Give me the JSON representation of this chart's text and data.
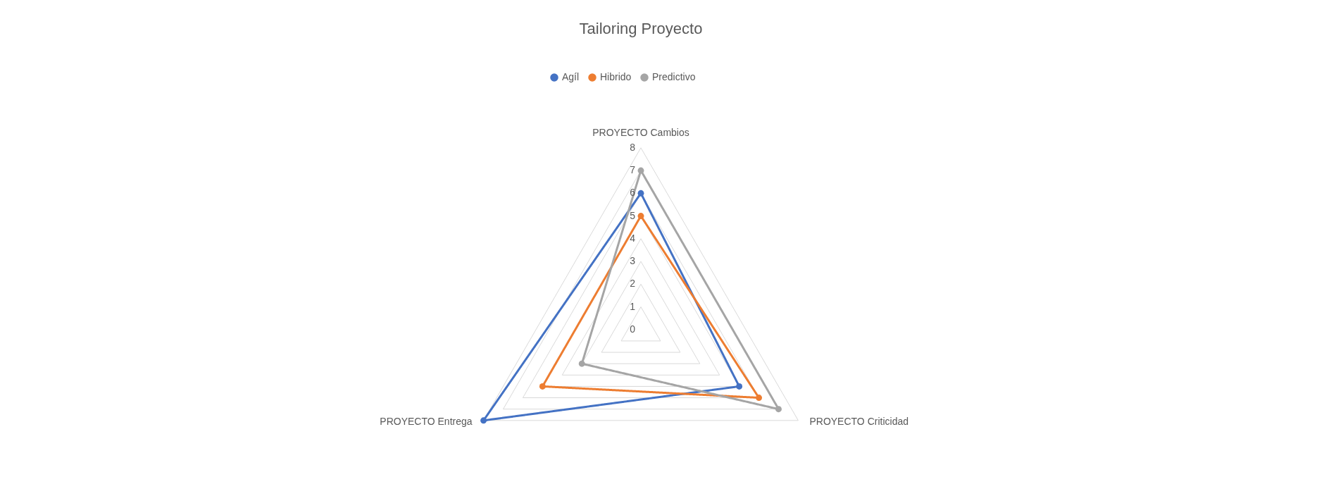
{
  "chart_data": {
    "type": "radar",
    "title": "Tailoring Proyecto",
    "categories": [
      "PROYECTO Cambios",
      "PROYECTO Criticidad",
      "PROYECTO Entrega"
    ],
    "series": [
      {
        "name": "Agíl",
        "color": "#4472c4",
        "values": [
          6,
          5,
          8
        ]
      },
      {
        "name": "Hibrido",
        "color": "#ed7d31",
        "values": [
          5,
          6,
          5
        ]
      },
      {
        "name": "Predictivo",
        "color": "#a5a5a5",
        "values": [
          7,
          7,
          3
        ]
      }
    ],
    "ylim": [
      0,
      8
    ],
    "yticks": [
      0,
      1,
      2,
      3,
      4,
      5,
      6,
      7,
      8
    ],
    "grid": true,
    "legend": "top",
    "marker": "circle",
    "line_style": "solid"
  }
}
